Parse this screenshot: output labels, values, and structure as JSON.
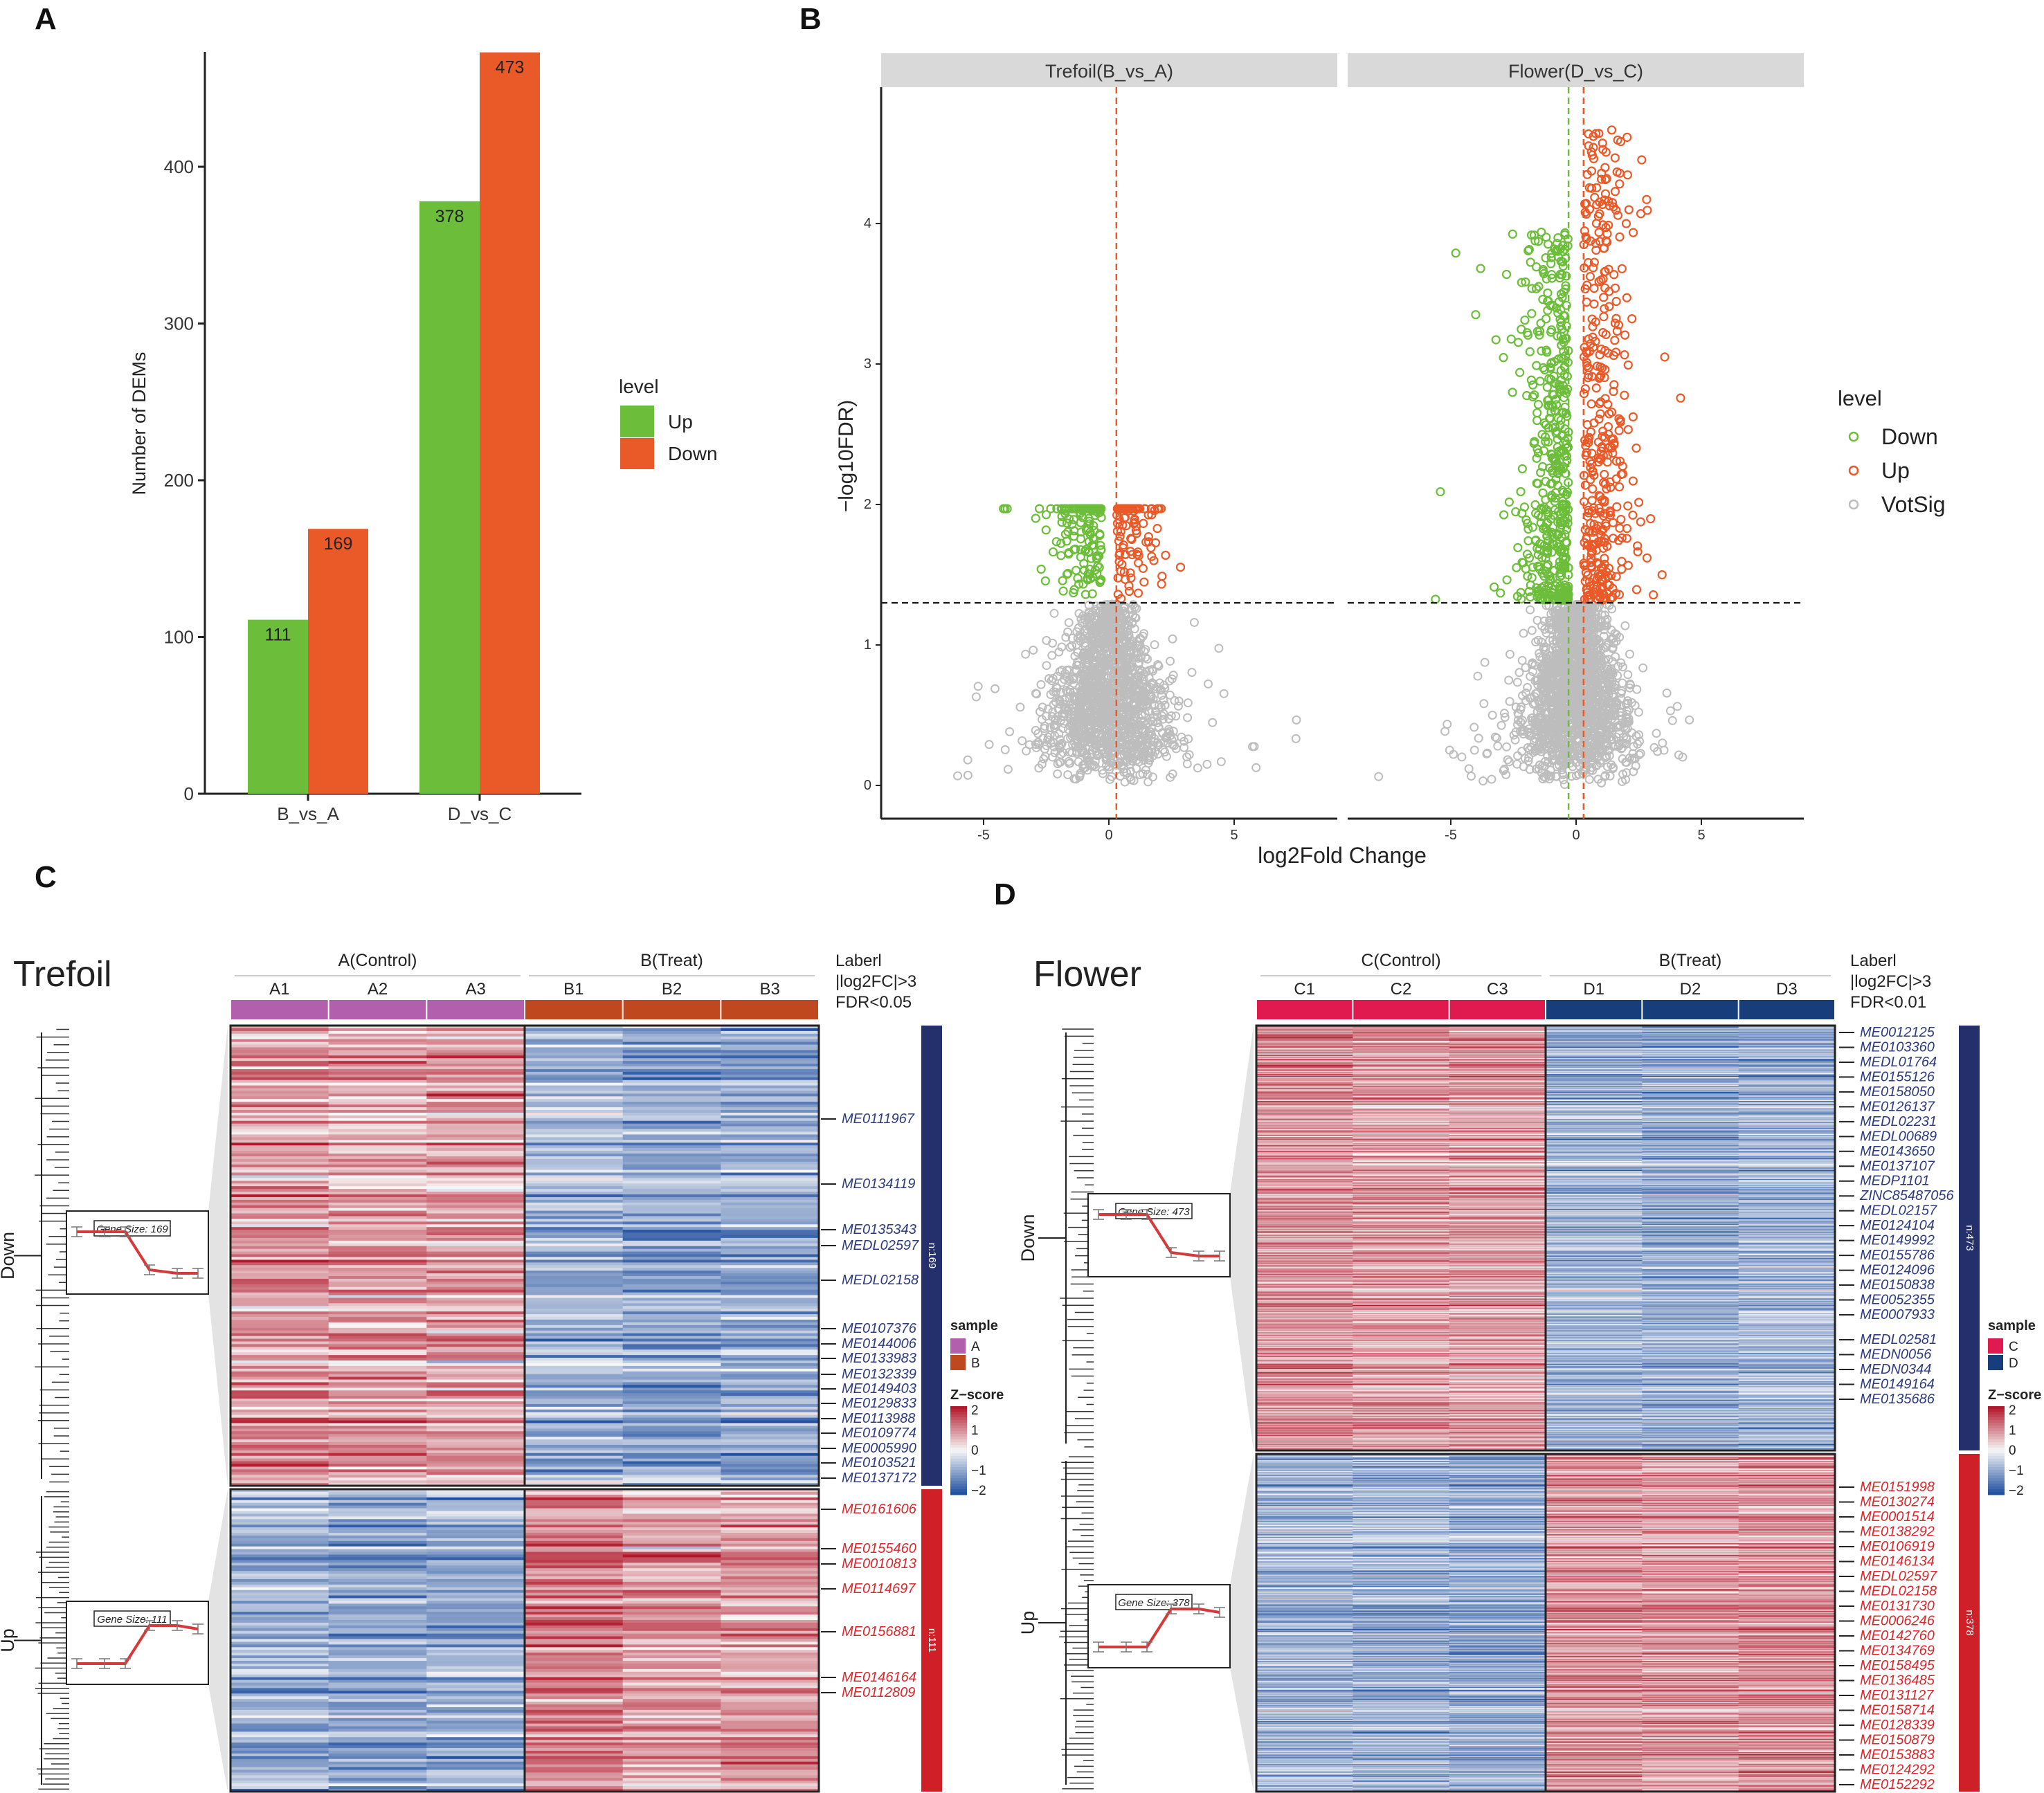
{
  "panels": {
    "a": "A",
    "b": "B",
    "c": "C",
    "d": "D"
  },
  "chart_data": [
    {
      "type": "bar",
      "categories": [
        "B_vs_A",
        "D_vs_C"
      ],
      "series": [
        {
          "name": "Up",
          "values": [
            111,
            378
          ],
          "color": "#6cbd3a"
        },
        {
          "name": "Down",
          "values": [
            169,
            473
          ],
          "color": "#ea5a28"
        }
      ],
      "xlabel": "",
      "ylabel": "Number of DEMs",
      "ylim": [
        0,
        473
      ],
      "yticks": [
        0,
        100,
        200,
        300,
        400
      ],
      "legend_title": "level",
      "legend_position": "right"
    },
    {
      "type": "scatter",
      "xlabel": "log2Fold Change",
      "ylabel": "−log10FDR)",
      "xlim": [
        -9.1,
        9.1
      ],
      "ylim": [
        -0.24,
        4.97
      ],
      "xticks": [
        -5,
        0,
        5
      ],
      "yticks": [
        0,
        1,
        2,
        3,
        4
      ],
      "fdr_threshold": 1.3,
      "facets": [
        {
          "title": "Trefoil(B_vs_A)",
          "Down": 169,
          "Up": 111,
          "NotSig": 1500,
          "fc_lines": [
            0.3
          ],
          "max_down_y": 1.97,
          "max_up_y": 1.97
        },
        {
          "title": "Flower(D_vs_C)",
          "Down": 473,
          "Up": 378,
          "NotSig": 1800,
          "fc_lines": [
            -0.3,
            0.3
          ],
          "max_down_y": 3.95,
          "max_up_y": 4.75
        }
      ],
      "legend_title": "level",
      "legend": [
        "Down",
        "Up",
        "VotSig"
      ],
      "colors": {
        "Down": "#6cbd3a",
        "Up": "#ea5a28",
        "VotSig": "#bdbdbd",
        "threshold": "#222222"
      },
      "legend_position": "right"
    },
    {
      "type": "heatmap",
      "title": "Trefoil",
      "groups": [
        {
          "label": "A(Control)",
          "samples": [
            "A1",
            "A2",
            "A3"
          ],
          "color": "#b25fae"
        },
        {
          "label": "B(Treat)",
          "samples": [
            "B1",
            "B2",
            "B3"
          ],
          "color": "#c0481f"
        }
      ],
      "filter": [
        "Laberl",
        "|log2FC|>3",
        "FDR<0.05"
      ],
      "clusters": [
        {
          "name": "Down",
          "n_label": "n:169",
          "rows": 169,
          "gene_size": "Gene Size: 169",
          "mean_z": [
            0.9,
            0.8,
            0.8,
            -0.8,
            -1.0,
            -0.9
          ],
          "color": "#24306b",
          "genes": [
            "ME0111967",
            "ME0134119",
            "ME0135343",
            "MEDL02597",
            "MEDL02158",
            "ME0107376",
            "ME0144006",
            "ME0133983",
            "ME0132339",
            "ME0149403",
            "ME0129833",
            "ME0113988",
            "ME0109774",
            "ME0005990",
            "ME0103521",
            "ME0137172"
          ]
        },
        {
          "name": "Up",
          "n_label": "n:111",
          "rows": 111,
          "gene_size": "Gene Size: 111",
          "mean_z": [
            -0.8,
            -0.9,
            -0.9,
            1.0,
            0.7,
            0.8
          ],
          "color": "#cf2027",
          "genes": [
            "ME0161606",
            "ME0155460",
            "ME0010813",
            "ME0114697",
            "ME0156881",
            "ME0146164",
            "ME0112809"
          ]
        }
      ],
      "legend": {
        "sample_title": "sample",
        "samples": [
          "A",
          "B"
        ],
        "z_title": "Z−score",
        "z_ticks": [
          "2",
          "1",
          "0",
          "−1",
          "−2"
        ]
      }
    },
    {
      "type": "heatmap",
      "title": "Flower",
      "groups": [
        {
          "label": "C(Control)",
          "samples": [
            "C1",
            "C2",
            "C3"
          ],
          "color": "#e0194f"
        },
        {
          "label": "B(Treat)",
          "samples": [
            "D1",
            "D2",
            "D3"
          ],
          "color": "#173d7a"
        }
      ],
      "filter": [
        "Laberl",
        "|log2FC|>3",
        "FDR<0.01"
      ],
      "clusters": [
        {
          "name": "Down",
          "n_label": "n:473",
          "rows": 473,
          "gene_size": "Gene Size: 473",
          "mean_z": [
            0.9,
            0.8,
            0.8,
            -0.8,
            -0.9,
            -0.8
          ],
          "color": "#24306b",
          "genes": [
            "ME0012125",
            "ME0103360",
            "MEDL01764",
            "ME0155126",
            "ME0158050",
            "ME0126137",
            "MEDL02231",
            "MEDL00689",
            "ME0143650",
            "ME0137107",
            "MEDP1101",
            "ZINC85487056",
            "MEDL02157",
            "ME0124104",
            "ME0149992",
            "ME0155786",
            "ME0124096",
            "ME0150838",
            "ME0052355",
            "ME0007933",
            "MEDL02581",
            "MEDN0056",
            "MEDN0344",
            "ME0149164",
            "ME0135686"
          ]
        },
        {
          "name": "Up",
          "n_label": "n:378",
          "rows": 378,
          "gene_size": "Gene Size: 378",
          "mean_z": [
            -0.8,
            -0.8,
            -0.9,
            0.9,
            0.8,
            0.9
          ],
          "color": "#cf2027",
          "genes": [
            "ME0151998",
            "ME0130274",
            "ME0001514",
            "ME0138292",
            "ME0106919",
            "ME0146134",
            "MEDL02597",
            "MEDL02158",
            "ME0131730",
            "ME0006246",
            "ME0142760",
            "ME0134769",
            "ME0158495",
            "ME0136485",
            "ME0131127",
            "ME0158714",
            "ME0128339",
            "ME0150879",
            "ME0153883",
            "ME0124292",
            "ME0152292"
          ]
        }
      ],
      "legend": {
        "sample_title": "sample",
        "samples": [
          "C",
          "D"
        ],
        "z_title": "Z−score",
        "z_ticks": [
          "2",
          "1",
          "0",
          "−1",
          "−2"
        ]
      }
    }
  ]
}
